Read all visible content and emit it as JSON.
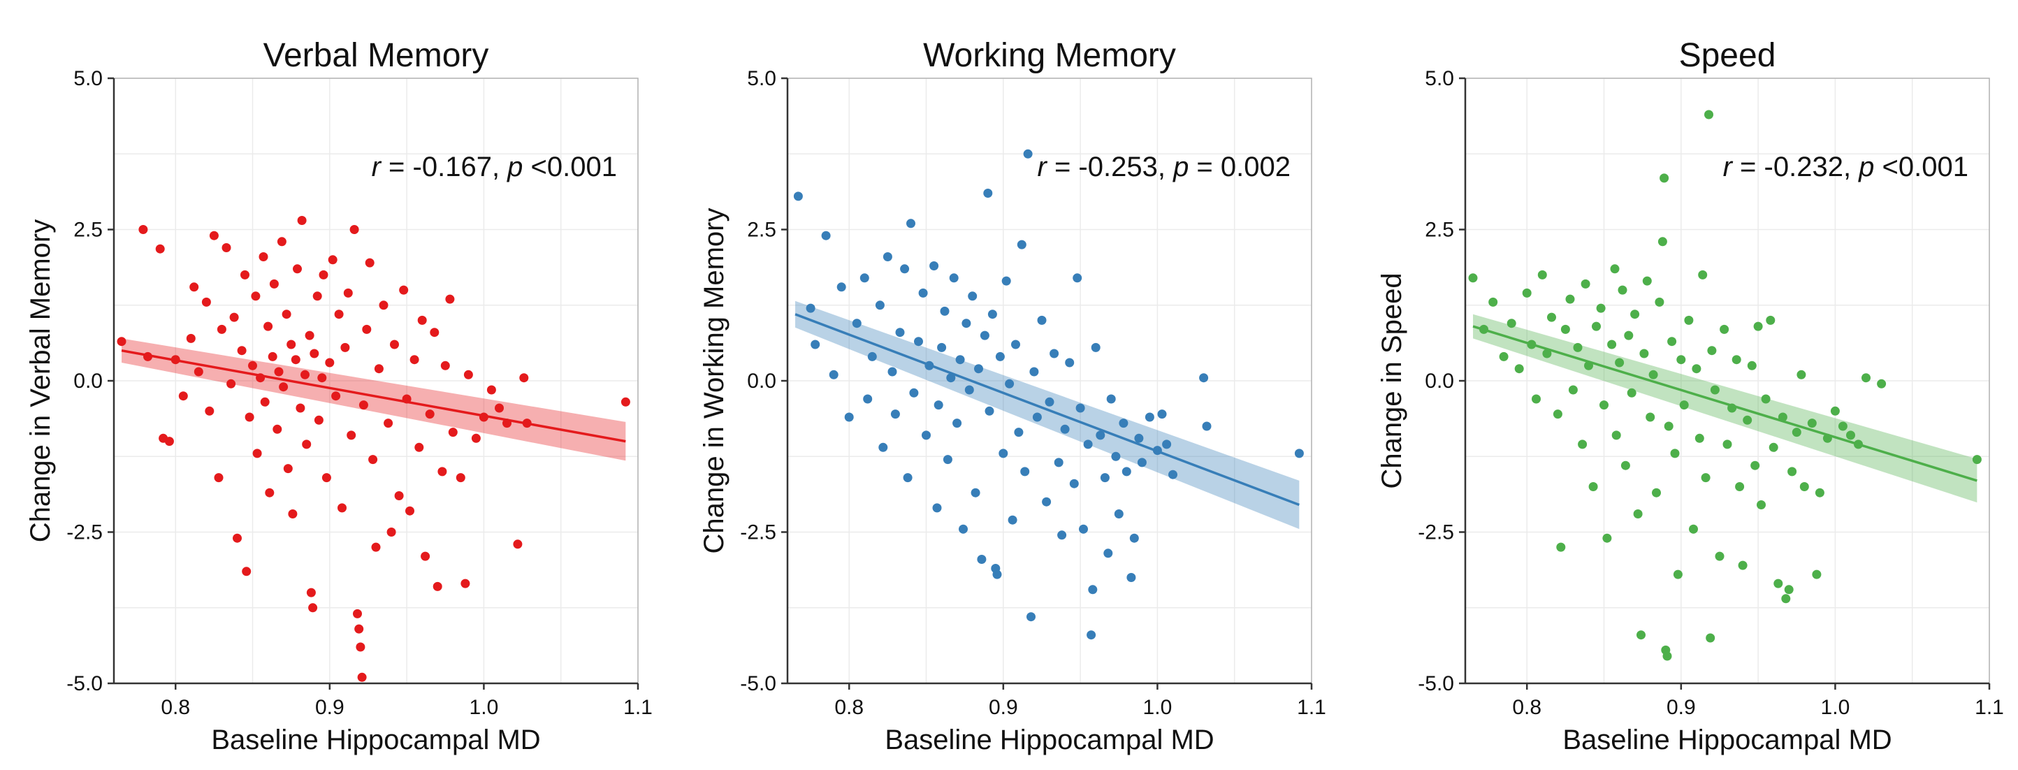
{
  "figure": {
    "xlabel": "Baseline Hippocampal MD",
    "x_ticks": [
      "0.8",
      "0.9",
      "1.0",
      "1.1"
    ],
    "y_ticks": [
      "-5.0",
      "-2.5",
      "0.0",
      "2.5",
      "5.0"
    ]
  },
  "chart_data": [
    {
      "type": "scatter",
      "title": "Verbal Memory",
      "xlabel": "Baseline Hippocampal MD",
      "ylabel": "Change in Verbal Memory",
      "xlim": [
        0.76,
        1.1
      ],
      "ylim": [
        -5.0,
        5.0
      ],
      "x_ticks": [
        0.8,
        0.9,
        1.0,
        1.1
      ],
      "y_ticks": [
        -5.0,
        -2.5,
        0.0,
        2.5,
        5.0
      ],
      "grid": true,
      "color": "#e41a1c",
      "annotation": {
        "r_symbol": "r",
        "r_value": "= -0.167,",
        "p_symbol": "p",
        "p_value": "<0.001"
      },
      "fit": {
        "x": [
          0.765,
          1.092
        ],
        "y": [
          0.5,
          -1.0
        ],
        "band_half_width": [
          0.2,
          0.32
        ]
      },
      "points": [
        [
          0.765,
          0.65
        ],
        [
          0.779,
          2.5
        ],
        [
          0.782,
          0.4
        ],
        [
          0.79,
          2.18
        ],
        [
          0.792,
          -0.95
        ],
        [
          0.796,
          -1.0
        ],
        [
          0.8,
          0.35
        ],
        [
          0.805,
          -0.25
        ],
        [
          0.81,
          0.7
        ],
        [
          0.812,
          1.55
        ],
        [
          0.815,
          0.15
        ],
        [
          0.82,
          1.3
        ],
        [
          0.822,
          -0.5
        ],
        [
          0.825,
          2.4
        ],
        [
          0.828,
          -1.6
        ],
        [
          0.83,
          0.85
        ],
        [
          0.833,
          2.2
        ],
        [
          0.836,
          -0.05
        ],
        [
          0.838,
          1.05
        ],
        [
          0.84,
          -2.6
        ],
        [
          0.843,
          0.5
        ],
        [
          0.845,
          1.75
        ],
        [
          0.846,
          -3.15
        ],
        [
          0.848,
          -0.6
        ],
        [
          0.85,
          0.25
        ],
        [
          0.852,
          1.4
        ],
        [
          0.853,
          -1.2
        ],
        [
          0.855,
          0.05
        ],
        [
          0.857,
          2.05
        ],
        [
          0.858,
          -0.35
        ],
        [
          0.86,
          0.9
        ],
        [
          0.861,
          -1.85
        ],
        [
          0.863,
          0.4
        ],
        [
          0.864,
          1.6
        ],
        [
          0.866,
          -0.8
        ],
        [
          0.867,
          0.15
        ],
        [
          0.869,
          2.3
        ],
        [
          0.87,
          -0.1
        ],
        [
          0.872,
          1.1
        ],
        [
          0.873,
          -1.45
        ],
        [
          0.875,
          0.6
        ],
        [
          0.876,
          -2.2
        ],
        [
          0.878,
          0.35
        ],
        [
          0.879,
          1.85
        ],
        [
          0.881,
          -0.45
        ],
        [
          0.882,
          2.65
        ],
        [
          0.884,
          0.1
        ],
        [
          0.885,
          -1.05
        ],
        [
          0.887,
          0.75
        ],
        [
          0.888,
          -3.5
        ],
        [
          0.889,
          -3.75
        ],
        [
          0.89,
          0.45
        ],
        [
          0.892,
          1.4
        ],
        [
          0.893,
          -0.65
        ],
        [
          0.895,
          0.05
        ],
        [
          0.896,
          1.75
        ],
        [
          0.898,
          -1.6
        ],
        [
          0.9,
          0.3
        ],
        [
          0.902,
          2.0
        ],
        [
          0.904,
          -0.25
        ],
        [
          0.906,
          1.1
        ],
        [
          0.908,
          -2.1
        ],
        [
          0.91,
          0.55
        ],
        [
          0.912,
          1.45
        ],
        [
          0.914,
          -0.9
        ],
        [
          0.916,
          2.5
        ],
        [
          0.918,
          -3.85
        ],
        [
          0.919,
          -4.1
        ],
        [
          0.92,
          -4.4
        ],
        [
          0.921,
          -4.9
        ],
        [
          0.922,
          -0.4
        ],
        [
          0.924,
          0.85
        ],
        [
          0.926,
          1.95
        ],
        [
          0.928,
          -1.3
        ],
        [
          0.93,
          -2.75
        ],
        [
          0.932,
          0.2
        ],
        [
          0.935,
          1.25
        ],
        [
          0.938,
          -0.7
        ],
        [
          0.94,
          -2.5
        ],
        [
          0.942,
          0.6
        ],
        [
          0.945,
          -1.9
        ],
        [
          0.948,
          1.5
        ],
        [
          0.95,
          -0.3
        ],
        [
          0.952,
          -2.15
        ],
        [
          0.955,
          0.35
        ],
        [
          0.958,
          -1.1
        ],
        [
          0.96,
          1.0
        ],
        [
          0.962,
          -2.9
        ],
        [
          0.965,
          -0.55
        ],
        [
          0.968,
          0.8
        ],
        [
          0.97,
          -3.4
        ],
        [
          0.973,
          -1.5
        ],
        [
          0.975,
          0.25
        ],
        [
          0.978,
          1.35
        ],
        [
          0.98,
          -0.85
        ],
        [
          0.985,
          -1.6
        ],
        [
          0.988,
          -3.35
        ],
        [
          0.99,
          0.1
        ],
        [
          0.995,
          -0.95
        ],
        [
          1.0,
          -0.6
        ],
        [
          1.005,
          -0.15
        ],
        [
          1.01,
          -0.45
        ],
        [
          1.015,
          -0.7
        ],
        [
          1.022,
          -2.7
        ],
        [
          1.026,
          0.05
        ],
        [
          1.028,
          -0.7
        ],
        [
          1.092,
          -0.35
        ]
      ]
    },
    {
      "type": "scatter",
      "title": "Working Memory",
      "xlabel": "Baseline Hippocampal MD",
      "ylabel": "Change in Working Memory",
      "xlim": [
        0.76,
        1.1
      ],
      "ylim": [
        -5.0,
        5.0
      ],
      "x_ticks": [
        0.8,
        0.9,
        1.0,
        1.1
      ],
      "y_ticks": [
        -5.0,
        -2.5,
        0.0,
        2.5,
        5.0
      ],
      "grid": true,
      "color": "#377eb8",
      "annotation": {
        "r_symbol": "r",
        "r_value": "= -0.253,",
        "p_symbol": "p",
        "p_value": "= 0.002"
      },
      "fit": {
        "x": [
          0.765,
          1.092
        ],
        "y": [
          1.1,
          -2.05
        ],
        "band_half_width": [
          0.22,
          0.4
        ]
      },
      "points": [
        [
          0.767,
          3.05
        ],
        [
          0.775,
          1.2
        ],
        [
          0.778,
          0.6
        ],
        [
          0.785,
          2.4
        ],
        [
          0.79,
          0.1
        ],
        [
          0.795,
          1.55
        ],
        [
          0.8,
          -0.6
        ],
        [
          0.805,
          0.95
        ],
        [
          0.81,
          1.7
        ],
        [
          0.812,
          -0.3
        ],
        [
          0.815,
          0.4
        ],
        [
          0.82,
          1.25
        ],
        [
          0.822,
          -1.1
        ],
        [
          0.825,
          2.05
        ],
        [
          0.828,
          0.15
        ],
        [
          0.83,
          -0.55
        ],
        [
          0.833,
          0.8
        ],
        [
          0.836,
          1.85
        ],
        [
          0.838,
          -1.6
        ],
        [
          0.84,
          2.6
        ],
        [
          0.842,
          -0.2
        ],
        [
          0.845,
          0.65
        ],
        [
          0.848,
          1.45
        ],
        [
          0.85,
          -0.9
        ],
        [
          0.852,
          0.25
        ],
        [
          0.855,
          1.9
        ],
        [
          0.857,
          -2.1
        ],
        [
          0.858,
          -0.4
        ],
        [
          0.86,
          0.55
        ],
        [
          0.862,
          1.15
        ],
        [
          0.864,
          -1.3
        ],
        [
          0.866,
          0.05
        ],
        [
          0.868,
          1.7
        ],
        [
          0.87,
          -0.7
        ],
        [
          0.872,
          0.35
        ],
        [
          0.874,
          -2.45
        ],
        [
          0.876,
          0.95
        ],
        [
          0.878,
          -0.15
        ],
        [
          0.88,
          1.4
        ],
        [
          0.882,
          -1.85
        ],
        [
          0.884,
          0.2
        ],
        [
          0.886,
          -2.95
        ],
        [
          0.888,
          0.75
        ],
        [
          0.89,
          3.1
        ],
        [
          0.891,
          -0.5
        ],
        [
          0.893,
          1.1
        ],
        [
          0.895,
          -3.1
        ],
        [
          0.896,
          -3.2
        ],
        [
          0.898,
          0.4
        ],
        [
          0.9,
          -1.2
        ],
        [
          0.902,
          1.65
        ],
        [
          0.904,
          -0.05
        ],
        [
          0.906,
          -2.3
        ],
        [
          0.908,
          0.6
        ],
        [
          0.91,
          -0.85
        ],
        [
          0.912,
          2.25
        ],
        [
          0.914,
          -1.5
        ],
        [
          0.916,
          3.75
        ],
        [
          0.918,
          -3.9
        ],
        [
          0.92,
          0.15
        ],
        [
          0.922,
          -0.6
        ],
        [
          0.925,
          1.0
        ],
        [
          0.928,
          -2.0
        ],
        [
          0.93,
          -0.35
        ],
        [
          0.933,
          0.45
        ],
        [
          0.936,
          -1.35
        ],
        [
          0.938,
          -2.55
        ],
        [
          0.94,
          -0.8
        ],
        [
          0.943,
          0.3
        ],
        [
          0.946,
          -1.7
        ],
        [
          0.948,
          1.7
        ],
        [
          0.95,
          -0.45
        ],
        [
          0.952,
          -2.45
        ],
        [
          0.955,
          -1.05
        ],
        [
          0.957,
          -4.2
        ],
        [
          0.958,
          -3.45
        ],
        [
          0.96,
          0.55
        ],
        [
          0.963,
          -0.9
        ],
        [
          0.966,
          -1.6
        ],
        [
          0.968,
          -2.85
        ],
        [
          0.97,
          -0.3
        ],
        [
          0.973,
          -1.25
        ],
        [
          0.975,
          -2.2
        ],
        [
          0.978,
          -0.7
        ],
        [
          0.98,
          -1.5
        ],
        [
          0.983,
          -3.25
        ],
        [
          0.985,
          -2.6
        ],
        [
          0.988,
          -0.95
        ],
        [
          0.99,
          -1.35
        ],
        [
          0.995,
          -0.6
        ],
        [
          1.0,
          -1.15
        ],
        [
          1.003,
          -0.55
        ],
        [
          1.006,
          -1.05
        ],
        [
          1.01,
          -1.55
        ],
        [
          1.03,
          0.05
        ],
        [
          1.032,
          -0.75
        ],
        [
          1.092,
          -1.2
        ]
      ]
    },
    {
      "type": "scatter",
      "title": "Speed",
      "xlabel": "Baseline Hippocampal MD",
      "ylabel": "Change in Speed",
      "xlim": [
        0.76,
        1.1
      ],
      "ylim": [
        -5.0,
        5.0
      ],
      "x_ticks": [
        0.8,
        0.9,
        1.0,
        1.1
      ],
      "y_ticks": [
        -5.0,
        -2.5,
        0.0,
        2.5,
        5.0
      ],
      "grid": true,
      "color": "#4daf4a",
      "annotation": {
        "r_symbol": "r",
        "r_value": "= -0.232,",
        "p_symbol": "p",
        "p_value": "<0.001"
      },
      "fit": {
        "x": [
          0.765,
          1.092
        ],
        "y": [
          0.9,
          -1.65
        ],
        "band_half_width": [
          0.2,
          0.36
        ]
      },
      "points": [
        [
          0.765,
          1.7
        ],
        [
          0.772,
          0.85
        ],
        [
          0.778,
          1.3
        ],
        [
          0.785,
          0.4
        ],
        [
          0.79,
          0.95
        ],
        [
          0.795,
          0.2
        ],
        [
          0.8,
          1.45
        ],
        [
          0.803,
          0.6
        ],
        [
          0.806,
          -0.3
        ],
        [
          0.81,
          1.75
        ],
        [
          0.813,
          0.45
        ],
        [
          0.816,
          1.05
        ],
        [
          0.82,
          -0.55
        ],
        [
          0.822,
          -2.75
        ],
        [
          0.825,
          0.85
        ],
        [
          0.828,
          1.35
        ],
        [
          0.83,
          -0.15
        ],
        [
          0.833,
          0.55
        ],
        [
          0.836,
          -1.05
        ],
        [
          0.838,
          1.6
        ],
        [
          0.84,
          0.25
        ],
        [
          0.843,
          -1.75
        ],
        [
          0.845,
          0.9
        ],
        [
          0.848,
          1.2
        ],
        [
          0.85,
          -0.4
        ],
        [
          0.852,
          -2.6
        ],
        [
          0.855,
          0.6
        ],
        [
          0.857,
          1.85
        ],
        [
          0.858,
          -0.9
        ],
        [
          0.86,
          0.3
        ],
        [
          0.862,
          1.5
        ],
        [
          0.864,
          -1.4
        ],
        [
          0.866,
          0.75
        ],
        [
          0.868,
          -0.2
        ],
        [
          0.87,
          1.1
        ],
        [
          0.872,
          -2.2
        ],
        [
          0.874,
          -4.2
        ],
        [
          0.876,
          0.45
        ],
        [
          0.878,
          1.65
        ],
        [
          0.88,
          -0.6
        ],
        [
          0.882,
          0.1
        ],
        [
          0.884,
          -1.85
        ],
        [
          0.886,
          1.3
        ],
        [
          0.888,
          2.3
        ],
        [
          0.889,
          3.35
        ],
        [
          0.89,
          -4.45
        ],
        [
          0.891,
          -4.55
        ],
        [
          0.892,
          -0.75
        ],
        [
          0.894,
          0.65
        ],
        [
          0.896,
          -1.2
        ],
        [
          0.898,
          -3.2
        ],
        [
          0.9,
          0.35
        ],
        [
          0.902,
          -0.4
        ],
        [
          0.905,
          1.0
        ],
        [
          0.908,
          -2.45
        ],
        [
          0.91,
          0.2
        ],
        [
          0.912,
          -0.95
        ],
        [
          0.914,
          1.75
        ],
        [
          0.916,
          -1.6
        ],
        [
          0.918,
          4.4
        ],
        [
          0.919,
          -4.25
        ],
        [
          0.92,
          0.5
        ],
        [
          0.922,
          -0.15
        ],
        [
          0.925,
          -2.9
        ],
        [
          0.928,
          0.85
        ],
        [
          0.93,
          -1.05
        ],
        [
          0.933,
          -0.45
        ],
        [
          0.936,
          0.35
        ],
        [
          0.938,
          -1.75
        ],
        [
          0.94,
          -3.05
        ],
        [
          0.943,
          -0.65
        ],
        [
          0.946,
          0.25
        ],
        [
          0.948,
          -1.4
        ],
        [
          0.95,
          0.9
        ],
        [
          0.952,
          -2.05
        ],
        [
          0.955,
          -0.3
        ],
        [
          0.958,
          1.0
        ],
        [
          0.96,
          -1.1
        ],
        [
          0.963,
          -3.35
        ],
        [
          0.966,
          -0.6
        ],
        [
          0.968,
          -3.6
        ],
        [
          0.97,
          -3.45
        ],
        [
          0.972,
          -1.5
        ],
        [
          0.975,
          -0.85
        ],
        [
          0.978,
          0.1
        ],
        [
          0.98,
          -1.75
        ],
        [
          0.985,
          -0.7
        ],
        [
          0.988,
          -3.2
        ],
        [
          0.99,
          -1.85
        ],
        [
          0.995,
          -0.95
        ],
        [
          1.0,
          -0.5
        ],
        [
          1.005,
          -0.75
        ],
        [
          1.01,
          -0.9
        ],
        [
          1.015,
          -1.05
        ],
        [
          1.02,
          0.05
        ],
        [
          1.03,
          -0.05
        ],
        [
          1.092,
          -1.3
        ]
      ]
    }
  ]
}
